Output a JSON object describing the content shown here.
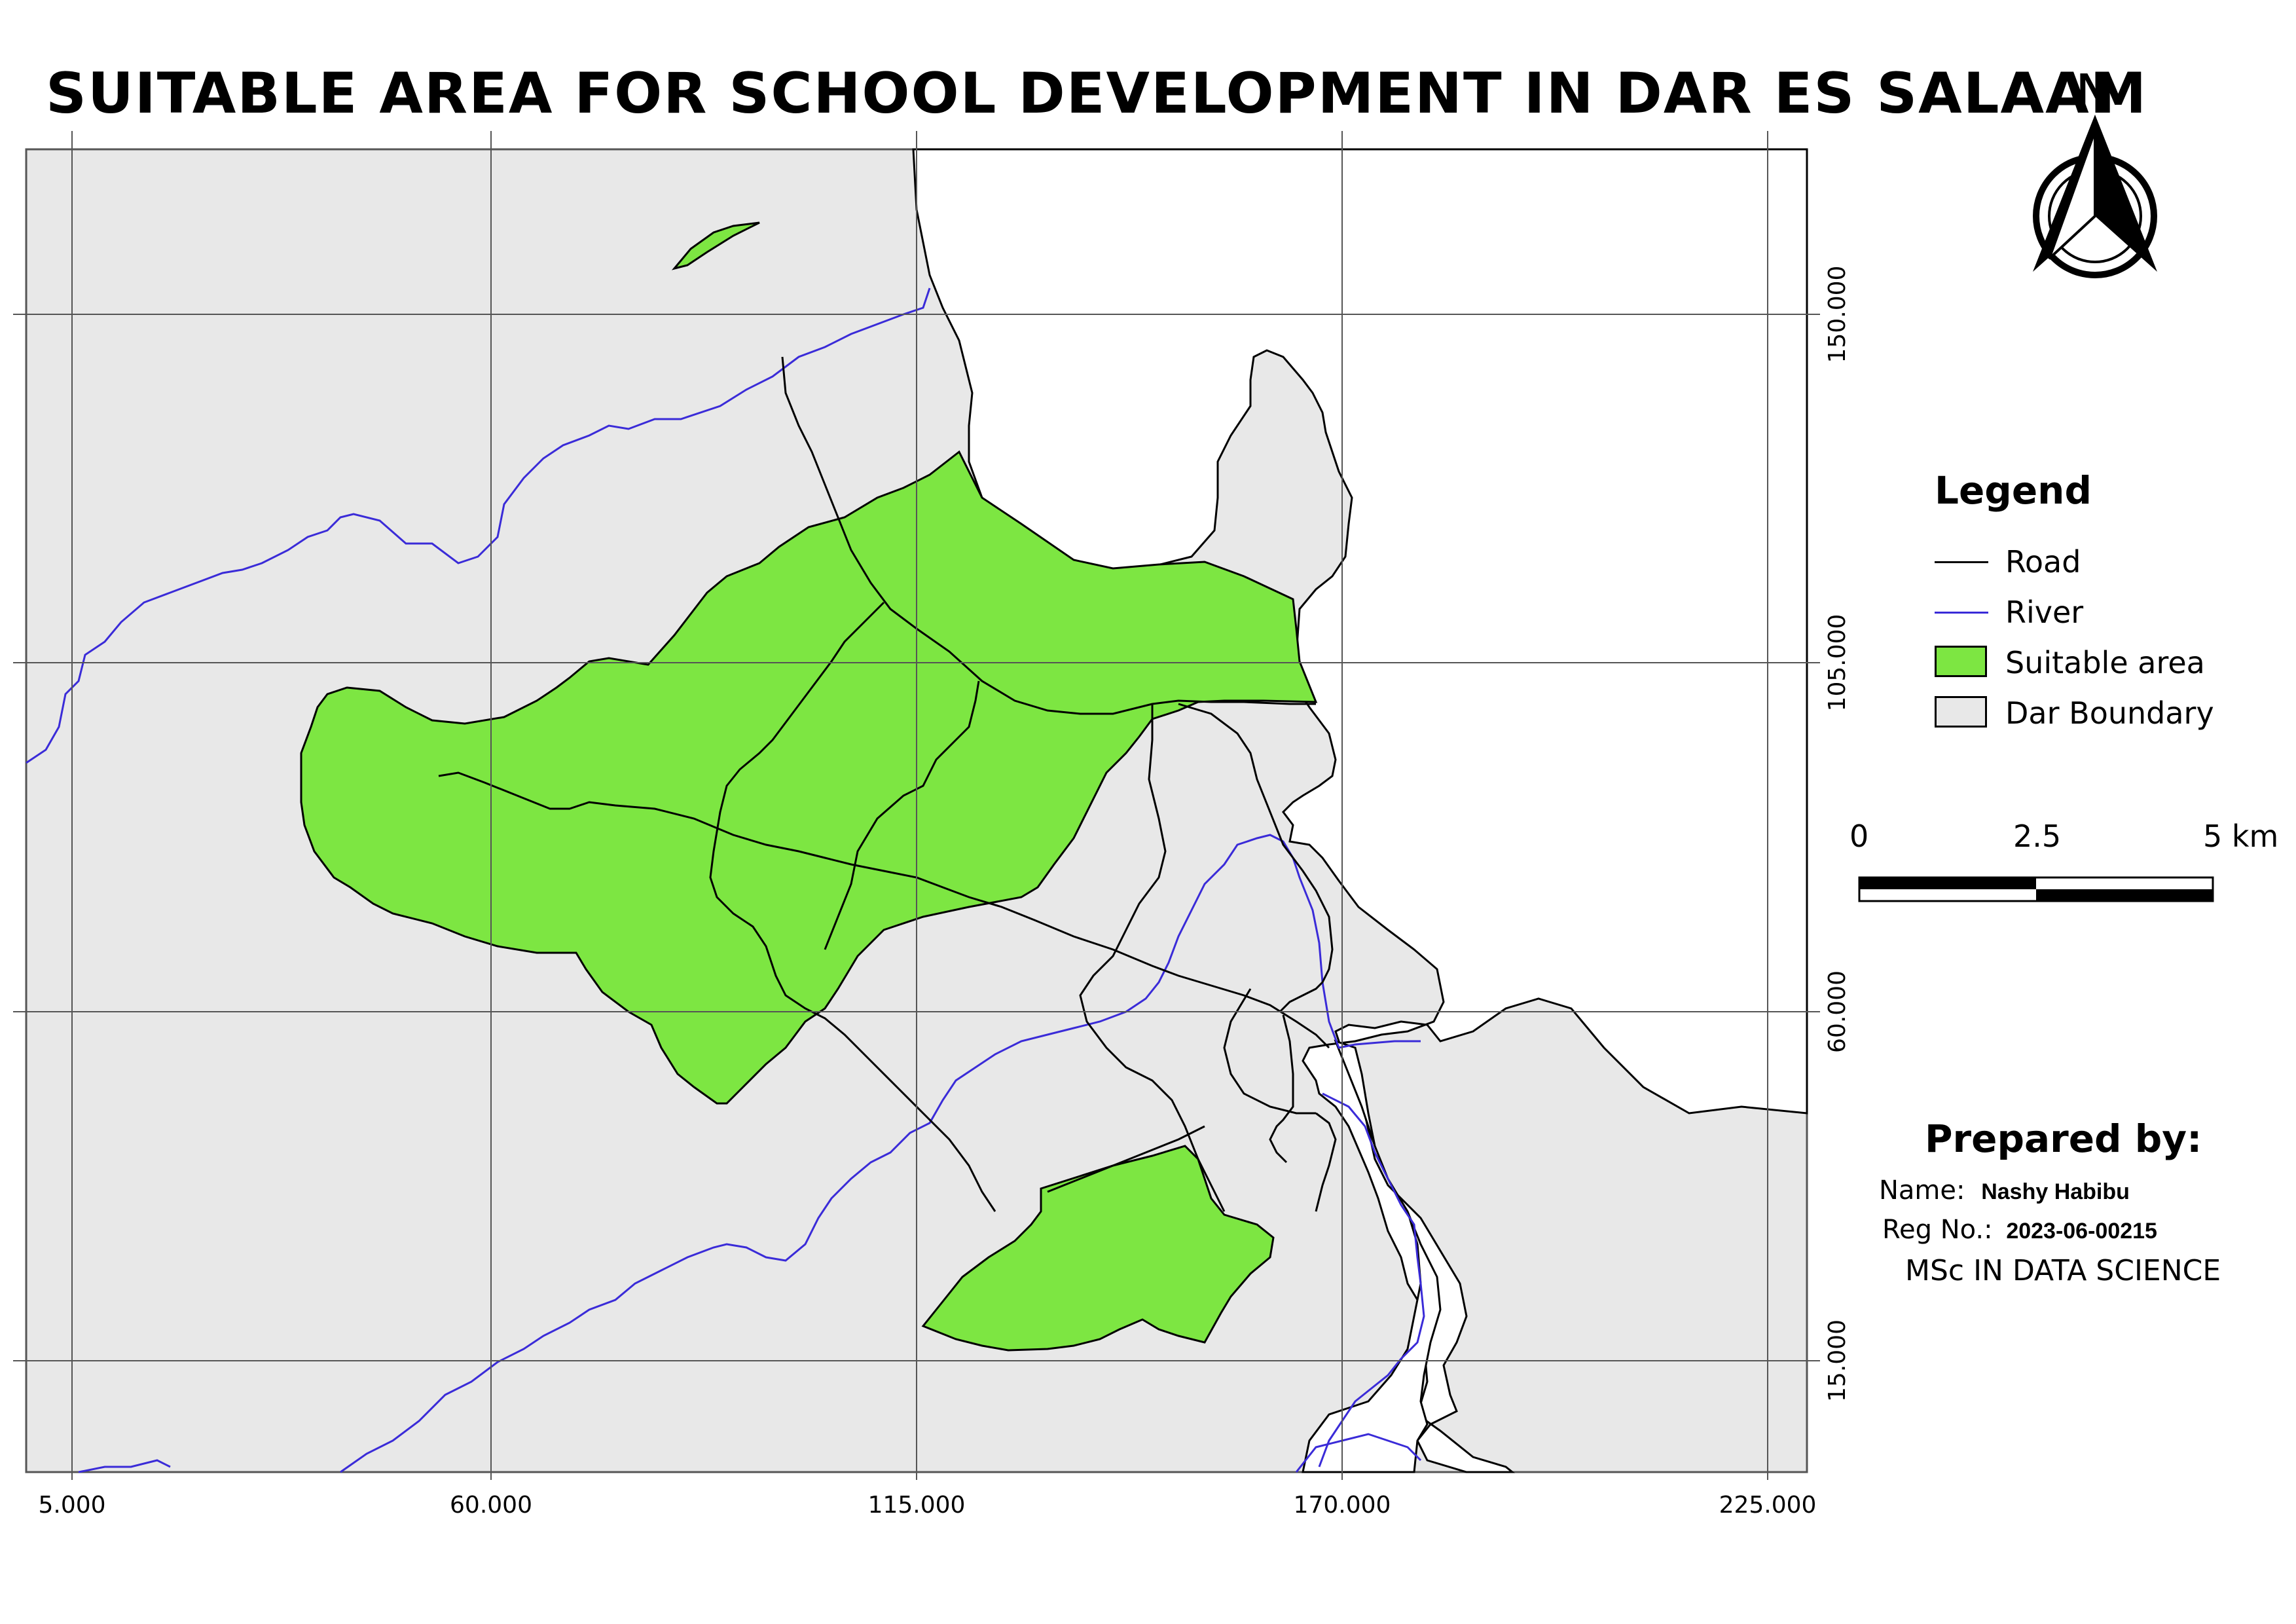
{
  "title": "SUITABLE AREA FOR SCHOOL DEVELOPMENT IN DAR ES SALAAM",
  "north_arrow": {
    "label": "N",
    "icon": "north-arrow-icon"
  },
  "grid": {
    "x_labels": [
      "5.000",
      "60.000",
      "115.000",
      "170.000",
      "225.000"
    ],
    "y_labels": [
      "150.000",
      "105.000",
      "60.000",
      "15.000"
    ]
  },
  "legend": {
    "title": "Legend",
    "items": [
      {
        "label": "Road",
        "symbol": "line",
        "color": "#000000"
      },
      {
        "label": "River",
        "symbol": "line",
        "color": "#3a2bd8"
      },
      {
        "label": "Suitable area",
        "symbol": "box",
        "color": "#7de642"
      },
      {
        "label": "Dar Boundary",
        "symbol": "box",
        "color": "#e8e8e8"
      }
    ]
  },
  "scale_bar": {
    "labels": [
      "0",
      "2.5",
      "5 km"
    ]
  },
  "prepared_by": {
    "heading": "Prepared by:",
    "name_label": "Name:",
    "name_value": "Nashy Habibu",
    "reg_label": "Reg No.:",
    "reg_value": "2023-06-00215",
    "program": "MSc IN DATA SCIENCE"
  },
  "colors": {
    "land": "#e8e8e8",
    "suitable": "#7de642",
    "river": "#3a2bd8",
    "road": "#000000",
    "water": "#ffffff"
  }
}
